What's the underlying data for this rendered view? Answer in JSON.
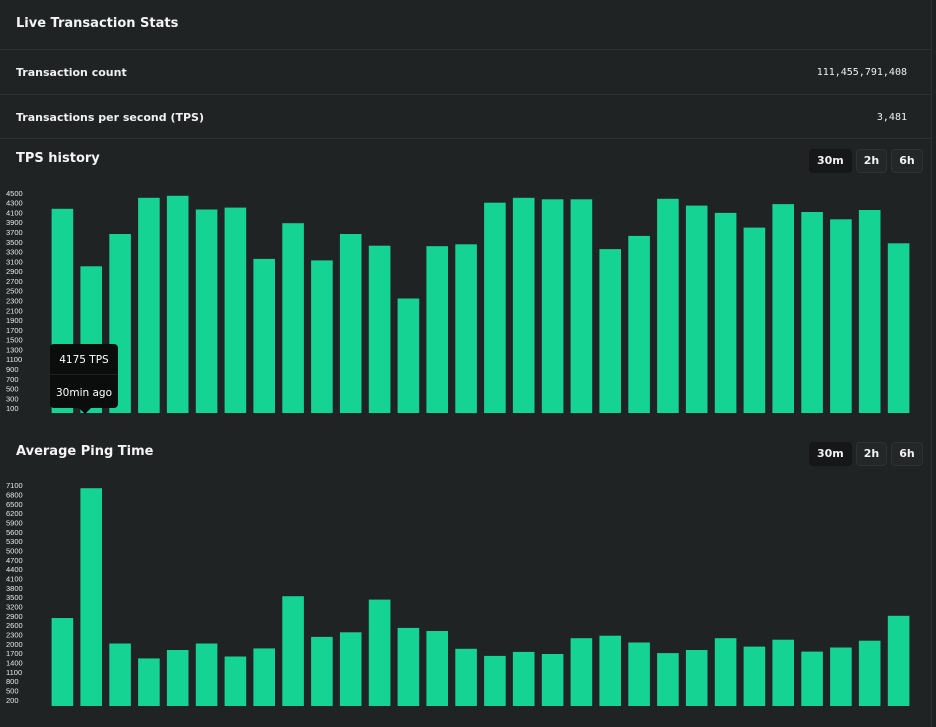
{
  "header": {
    "title": "Live Transaction Stats"
  },
  "stats": [
    {
      "label": "Transaction count",
      "value": "111,455,791,408"
    },
    {
      "label": "Transactions per second (TPS)",
      "value": "3,481"
    }
  ],
  "ranges": [
    "30m",
    "2h",
    "6h"
  ],
  "active_range": "30m",
  "tooltip": {
    "value": "4175 TPS",
    "time": "30min ago"
  },
  "colors": {
    "bar": "#14d393",
    "background": "#1f2324"
  },
  "chart_data": [
    {
      "type": "bar",
      "title": "TPS history",
      "yticks": [
        "4500",
        "4300",
        "4100",
        "3900",
        "3700",
        "3500",
        "3300",
        "3100",
        "2900",
        "2700",
        "2500",
        "2300",
        "2100",
        "1900",
        "1700",
        "1500",
        "1300",
        "1100",
        "900",
        "700",
        "500",
        "300",
        "100"
      ],
      "ylim": [
        0,
        4600
      ],
      "values": [
        4175,
        3000,
        3660,
        4400,
        4440,
        4160,
        4200,
        3150,
        3880,
        3120,
        3660,
        3420,
        2340,
        3410,
        3450,
        4300,
        4400,
        4370,
        4370,
        3350,
        3620,
        4380,
        4240,
        4090,
        3790,
        4270,
        4110,
        3960,
        4150,
        3470
      ]
    },
    {
      "type": "bar",
      "title": "Average Ping Time",
      "yticks": [
        "7100",
        "6800",
        "6500",
        "6200",
        "5900",
        "5600",
        "5300",
        "5000",
        "4700",
        "4400",
        "4100",
        "3800",
        "3500",
        "3200",
        "2900",
        "2600",
        "2300",
        "2000",
        "1700",
        "1400",
        "1100",
        "800",
        "500",
        "200"
      ],
      "ylim": [
        0,
        7200
      ],
      "values": [
        2830,
        7000,
        2010,
        1530,
        1800,
        2010,
        1590,
        1850,
        3530,
        2220,
        2370,
        3420,
        2510,
        2410,
        1840,
        1610,
        1740,
        1670,
        2180,
        2260,
        2040,
        1700,
        1800,
        2180,
        1910,
        2130,
        1750,
        1880,
        2100,
        2900
      ]
    }
  ]
}
